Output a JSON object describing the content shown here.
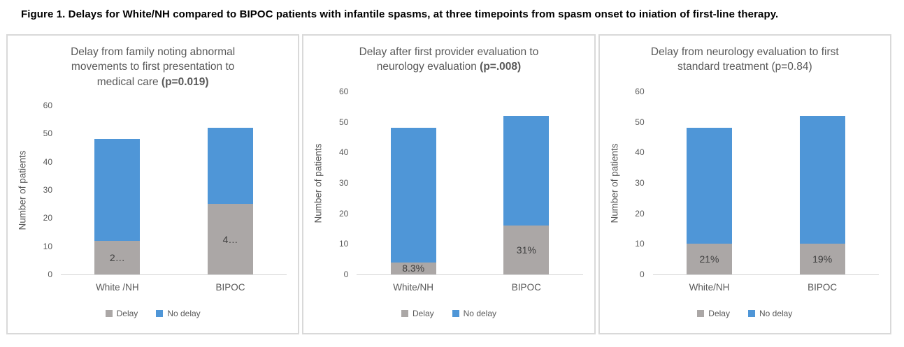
{
  "figure_caption": "Figure 1. Delays for White/NH compared to BIPOC patients with infantile spasms, at three timepoints from spasm onset to iniation of first-line therapy.",
  "colors": {
    "delay": "#aba7a6",
    "no_delay": "#4f96d7",
    "axis_text": "#595959",
    "panel_border": "#d9d9d9"
  },
  "legend": {
    "delay_label": "Delay",
    "no_delay_label": "No delay"
  },
  "chart_data": [
    {
      "type": "bar",
      "stacked": true,
      "title": "Delay from family noting abnormal movements to first presentation to medical care",
      "p_value": "(p=0.019)",
      "p_bold": true,
      "categories": [
        "White /NH",
        "BIPOC"
      ],
      "series": [
        {
          "name": "Delay",
          "color": "#aba7a6",
          "values": [
            12,
            25
          ],
          "labels": [
            "2…",
            "4…"
          ]
        },
        {
          "name": "No delay",
          "color": "#4f96d7",
          "values": [
            36,
            27
          ],
          "labels": [
            "",
            ""
          ]
        }
      ],
      "totals": [
        48,
        52
      ],
      "xlabel": "",
      "ylabel": "Number of patients",
      "ylim": [
        0,
        60
      ],
      "y_ticks": [
        0,
        10,
        20,
        30,
        40,
        50,
        60
      ],
      "grid": false,
      "legend_position": "bottom"
    },
    {
      "type": "bar",
      "stacked": true,
      "title": "Delay after first provider evaluation to neurology evaluation",
      "p_value": "(p=.008)",
      "p_bold": true,
      "categories": [
        "White/NH",
        "BIPOC"
      ],
      "series": [
        {
          "name": "Delay",
          "color": "#aba7a6",
          "values": [
            4,
            16
          ],
          "labels": [
            "8.3%",
            "31%"
          ]
        },
        {
          "name": "No delay",
          "color": "#4f96d7",
          "values": [
            44,
            36
          ],
          "labels": [
            "",
            ""
          ]
        }
      ],
      "totals": [
        48,
        52
      ],
      "xlabel": "",
      "ylabel": "Number of patients",
      "ylim": [
        0,
        60
      ],
      "y_ticks": [
        0,
        10,
        20,
        30,
        40,
        50,
        60
      ],
      "grid": false,
      "legend_position": "bottom"
    },
    {
      "type": "bar",
      "stacked": true,
      "title": "Delay from neurology evaluation to first standard treatment",
      "p_value": "(p=0.84)",
      "p_bold": false,
      "categories": [
        "White/NH",
        "BIPOC"
      ],
      "series": [
        {
          "name": "Delay",
          "color": "#aba7a6",
          "values": [
            10,
            10
          ],
          "labels": [
            "21%",
            "19%"
          ]
        },
        {
          "name": "No delay",
          "color": "#4f96d7",
          "values": [
            38,
            42
          ],
          "labels": [
            "",
            ""
          ]
        }
      ],
      "totals": [
        48,
        52
      ],
      "xlabel": "",
      "ylabel": "Number of patients",
      "ylim": [
        0,
        60
      ],
      "y_ticks": [
        0,
        10,
        20,
        30,
        40,
        50,
        60
      ],
      "grid": false,
      "legend_position": "bottom"
    }
  ]
}
